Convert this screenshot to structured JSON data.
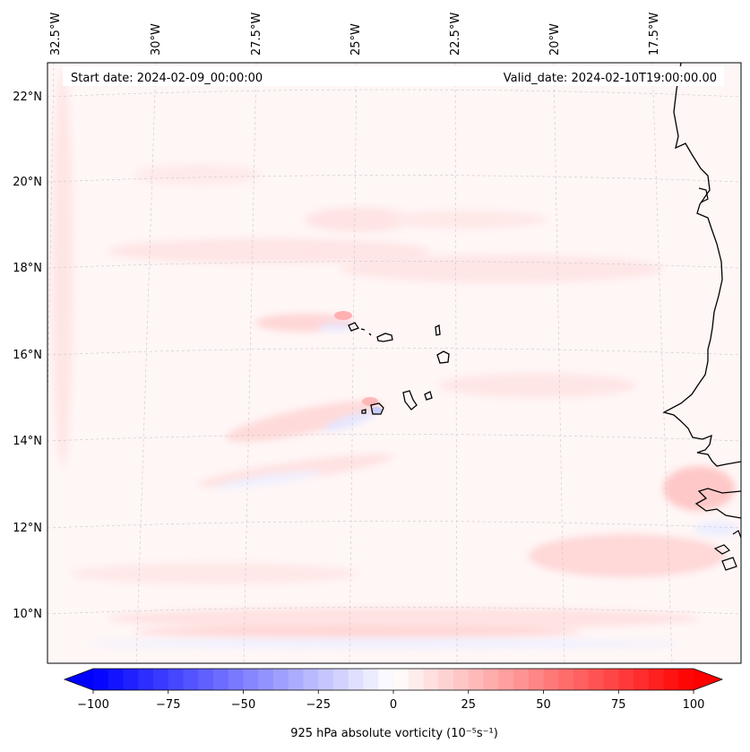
{
  "map": {
    "start_date": "Start date: 2024-02-09_00:00:00",
    "valid_date": "Valid_date: 2024-02-10T19:00:00.00",
    "lon_labels": [
      "32.5°W",
      "30°W",
      "27.5°W",
      "25°W",
      "22.5°W",
      "20°W",
      "17.5°W"
    ],
    "lat_labels": [
      "22°N",
      "20°N",
      "18°N",
      "16°N",
      "14°N",
      "12°N",
      "10°N"
    ],
    "land_color": "#000000",
    "background_color": "#fff5f5"
  },
  "colorbar": {
    "label": "925 hPa absolute vorticity (10⁻⁵s⁻¹)",
    "min": -100,
    "max": 100,
    "ticks": [
      "−100",
      "−75",
      "−50",
      "−25",
      "0",
      "25",
      "50",
      "75",
      "100"
    ],
    "tick_values": [
      -100,
      -75,
      -50,
      -25,
      0,
      25,
      50,
      75,
      100
    ],
    "levels": 40,
    "cmap": "bwr"
  }
}
